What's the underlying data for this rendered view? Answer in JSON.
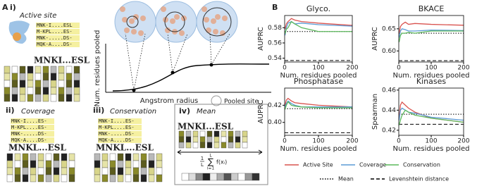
{
  "panel_a": {
    "label": "A",
    "i": {
      "num": "i)",
      "title": "Active site",
      "sequences": [
        "MNK-I....ESL",
        "M-KPL....ES-",
        "MNK-.....DS-",
        "MQK-A....DS-"
      ],
      "consensus": "MNKI...ESL"
    },
    "plot": {
      "ylabel": "Num. residues pooled",
      "xlabel": "Angstrom radius",
      "legend": "Pooled site"
    },
    "ii": {
      "num": "ii)",
      "title": "Coverage",
      "sequences": [
        "MNK-I....ES-",
        "M-KPL....ES-",
        "MNK-.....DS-",
        "MQK-A....DS-"
      ],
      "consensus": "MNKL...ESL"
    },
    "iii": {
      "num": "iii)",
      "title": "Conservation",
      "sequences": [
        "MNK-I....ES-",
        "M-KPL....ES-",
        "MNK-.....DS-",
        "MQK-A....DS-"
      ],
      "consensus": "MNKL...ESL"
    },
    "iv": {
      "num": "iv)",
      "title": "Mean",
      "consensus": "MNKI...ESL",
      "formula": {
        "num": "1",
        "den": "L",
        "sum": "∑",
        "upper": "L",
        "lower": "i=1",
        "body": "f(xᵢ)"
      }
    }
  },
  "panel_b_label": "B",
  "legend": [
    {
      "name": "Active Site",
      "color": "#d9534f"
    },
    {
      "name": "Coverage",
      "color": "#5b9bd5"
    },
    {
      "name": "Conservation",
      "color": "#5cb85c"
    },
    {
      "name": "Mean",
      "dash": "1.5 2"
    },
    {
      "name": "Levenshtein distance",
      "dash": "5 3"
    }
  ],
  "chart_data": [
    {
      "type": "line",
      "title": "Glyco.",
      "ylabel": "AUPRC",
      "xlabel": "Num. residues pooled",
      "x": [
        1,
        5,
        10,
        20,
        30,
        50,
        100,
        200
      ],
      "xlim": [
        0,
        200
      ],
      "xticks": [
        0,
        100,
        200
      ],
      "ylim": [
        0.535,
        0.596
      ],
      "yticks": [
        0.54,
        0.56,
        0.58
      ],
      "series": [
        {
          "values": [
            0.578,
            0.585,
            0.588,
            0.592,
            0.59,
            0.588,
            0.586,
            0.583
          ]
        },
        {
          "values": [
            0.57,
            0.58,
            0.586,
            0.588,
            0.585,
            0.586,
            0.584,
            0.582
          ]
        },
        {
          "values": [
            0.572,
            0.578,
            0.58,
            0.588,
            0.585,
            0.58,
            0.575,
            0.575
          ]
        }
      ],
      "mean": 0.575,
      "levenshtein": 0.537
    },
    {
      "type": "line",
      "title": "BKACE",
      "ylabel": "AUPRC",
      "xlabel": "Num. residues pooled",
      "x": [
        1,
        5,
        10,
        20,
        30,
        50,
        100,
        200
      ],
      "xlim": [
        0,
        200
      ],
      "xticks": [
        0,
        100,
        200
      ],
      "ylim": [
        0.575,
        0.68
      ],
      "yticks": [
        {
          "value": 0.6,
          "label": "0.60"
        },
        0.65
      ],
      "series": [
        {
          "values": [
            0.64,
            0.655,
            0.66,
            0.665,
            0.66,
            0.662,
            0.66,
            0.658
          ]
        },
        {
          "values": [
            0.63,
            0.645,
            0.65,
            0.648,
            0.645,
            0.645,
            0.647,
            0.646
          ]
        },
        {
          "values": [
            0.62,
            0.635,
            0.64,
            0.64,
            0.642,
            0.64,
            0.645,
            0.645
          ]
        }
      ],
      "mean": 0.64,
      "levenshtein": 0.578
    },
    {
      "type": "line",
      "title": "Phosphatase",
      "ylabel": "AUPRC",
      "xlabel": "Num. residues pooled",
      "x": [
        1,
        5,
        10,
        20,
        30,
        50,
        100,
        200
      ],
      "xlim": [
        0,
        200
      ],
      "xticks": [
        0,
        100,
        200
      ],
      "ylim": [
        0.385,
        0.44
      ],
      "yticks": [
        {
          "value": 0.4,
          "label": "0.40"
        },
        0.42
      ],
      "series": [
        {
          "values": [
            0.42,
            0.426,
            0.428,
            0.425,
            0.423,
            0.422,
            0.42,
            0.418
          ]
        },
        {
          "values": [
            0.418,
            0.422,
            0.425,
            0.422,
            0.42,
            0.418,
            0.418,
            0.418
          ]
        },
        {
          "values": [
            0.415,
            0.42,
            0.424,
            0.42,
            0.419,
            0.418,
            0.417,
            0.417
          ]
        }
      ],
      "mean": 0.416,
      "levenshtein": 0.388
    },
    {
      "type": "line",
      "title": "Kinases",
      "ylabel": "Spearman",
      "xlabel": "Num. residues pooled",
      "x": [
        1,
        5,
        10,
        20,
        30,
        50,
        100,
        200
      ],
      "xlim": [
        0,
        200
      ],
      "xticks": [
        0,
        100,
        200
      ],
      "ylim": [
        0.415,
        0.462
      ],
      "yticks": [
        0.42,
        0.44,
        0.46
      ],
      "series": [
        {
          "values": [
            0.432,
            0.445,
            0.448,
            0.445,
            0.442,
            0.438,
            0.432,
            0.428
          ]
        },
        {
          "values": [
            0.43,
            0.44,
            0.442,
            0.44,
            0.438,
            0.437,
            0.433,
            0.43
          ]
        },
        {
          "values": [
            0.425,
            0.43,
            0.435,
            0.44,
            0.438,
            0.435,
            0.432,
            0.428
          ]
        }
      ],
      "mean": 0.436,
      "levenshtein": 0.426
    }
  ]
}
